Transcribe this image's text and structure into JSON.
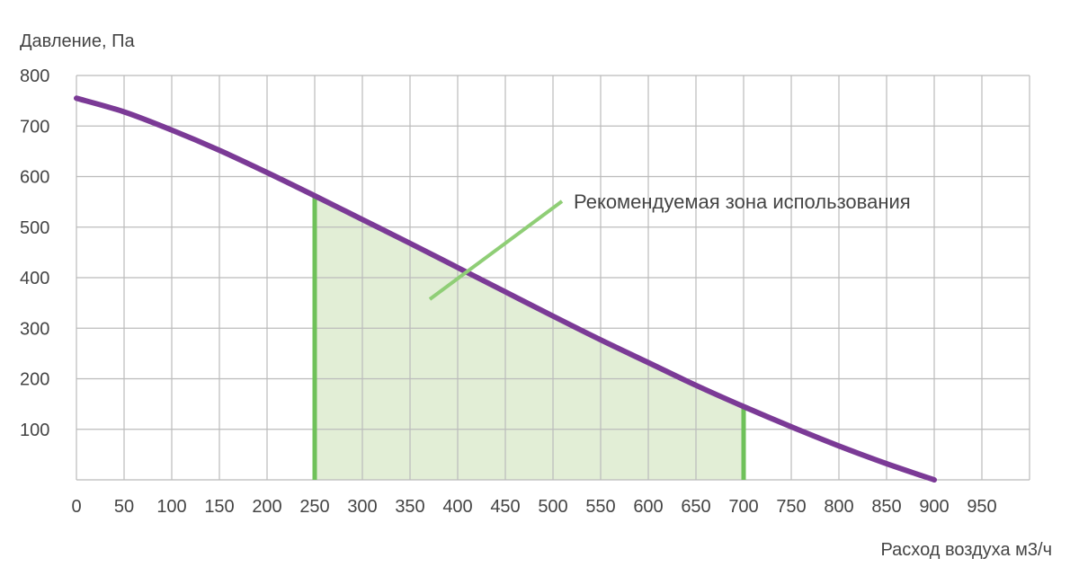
{
  "chart_data": {
    "type": "line",
    "xlabel": "Расход воздуха м3/ч",
    "ylabel": "Давление, Па",
    "xlim": [
      0,
      1000
    ],
    "ylim": [
      0,
      800
    ],
    "x_ticks": [
      "0",
      "50",
      "100",
      "150",
      "200",
      "250",
      "300",
      "350",
      "400",
      "450",
      "500",
      "550",
      "600",
      "650",
      "700",
      "750",
      "800",
      "850",
      "900",
      "950"
    ],
    "y_ticks": [
      "100",
      "200",
      "300",
      "400",
      "500",
      "600",
      "700",
      "800"
    ],
    "grid": true,
    "series": [
      {
        "x": [
          0,
          50,
          100,
          150,
          200,
          250,
          300,
          350,
          400,
          450,
          500,
          550,
          600,
          650,
          700,
          750,
          800,
          850,
          900
        ],
        "y": [
          755,
          728,
          692,
          652,
          608,
          562,
          515,
          468,
          420,
          372,
          324,
          277,
          232,
          187,
          145,
          105,
          67,
          32,
          0
        ]
      }
    ],
    "zone": {
      "x_start": 250,
      "x_end": 700,
      "label": "Рекомендуемая зона использования"
    },
    "colors": {
      "curve": "#7b3a96",
      "zone_fill": "#e2eed6",
      "zone_edge": "#6fc15a",
      "pointer": "#8fce76",
      "grid": "#bbbbbb"
    }
  }
}
